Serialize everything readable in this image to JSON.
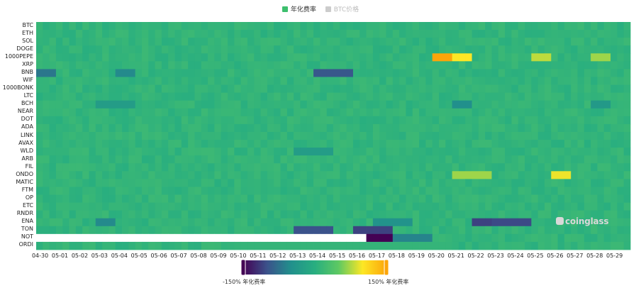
{
  "chart_data": {
    "type": "heatmap",
    "legend": [
      {
        "name": "年化费率",
        "color": "#3dbf6e",
        "active": true
      },
      {
        "name": "BTC价格",
        "color": "#cccccc",
        "active": false
      }
    ],
    "y_categories": [
      "BTC",
      "ETH",
      "SOL",
      "DOGE",
      "1000PEPE",
      "XRP",
      "BNB",
      "WIF",
      "1000BONK",
      "LTC",
      "BCH",
      "NEAR",
      "DOT",
      "ADA",
      "LINK",
      "AVAX",
      "WLD",
      "ARB",
      "FIL",
      "ONDO",
      "MATIC",
      "FTM",
      "OP",
      "ETC",
      "RNDR",
      "ENA",
      "TON",
      "NOT",
      "ORDI"
    ],
    "x_tick_labels": [
      "04-30",
      "05-01",
      "05-02",
      "05-03",
      "05-04",
      "05-05",
      "05-06",
      "05-07",
      "05-08",
      "05-09",
      "05-10",
      "05-11",
      "05-12",
      "05-13",
      "05-14",
      "05-15",
      "05-16",
      "05-17",
      "05-18",
      "05-19",
      "05-20",
      "05-21",
      "05-22",
      "05-23",
      "05-24",
      "05-25",
      "05-26",
      "05-27",
      "05-28",
      "05-29"
    ],
    "value_range": [
      -150,
      150
    ],
    "value_unit": "%",
    "color_scale": [
      "#440154",
      "#3b528b",
      "#21908c",
      "#28ae80",
      "#5ec962",
      "#fde725",
      "#fca50a"
    ],
    "base_value": 10,
    "missing": [
      {
        "category": "NOT",
        "from": "04-30",
        "to": "05-16"
      }
    ],
    "highlights": [
      {
        "category": "TON",
        "from": "05-13",
        "to": "05-13",
        "value": -90
      },
      {
        "category": "TON",
        "from": "05-13",
        "to": "05-14",
        "value": -100
      },
      {
        "category": "TON",
        "from": "05-16",
        "to": "05-17",
        "value": -110
      },
      {
        "category": "NOT",
        "from": "05-16",
        "to": "05-17",
        "value": -150
      },
      {
        "category": "NOT",
        "from": "05-18",
        "to": "05-19",
        "value": -60
      },
      {
        "category": "BNB",
        "from": "05-14",
        "to": "05-15",
        "value": -95
      },
      {
        "category": "BNB",
        "from": "05-04",
        "to": "05-04",
        "value": -55
      },
      {
        "category": "BNB",
        "from": "04-30",
        "to": "04-30",
        "value": -70
      },
      {
        "category": "ENA",
        "from": "05-22",
        "to": "05-22",
        "value": -110
      },
      {
        "category": "ENA",
        "from": "05-23",
        "to": "05-24",
        "value": -105
      },
      {
        "category": "ENA",
        "from": "05-03",
        "to": "05-03",
        "value": -55
      },
      {
        "category": "ENA",
        "from": "05-17",
        "to": "05-18",
        "value": -45
      },
      {
        "category": "BCH",
        "from": "05-03",
        "to": "05-04",
        "value": -30
      },
      {
        "category": "BCH",
        "from": "05-21",
        "to": "05-21",
        "value": -50
      },
      {
        "category": "BCH",
        "from": "05-28",
        "to": "05-28",
        "value": -35
      },
      {
        "category": "1000PEPE",
        "from": "05-20",
        "to": "05-20",
        "value": 150
      },
      {
        "category": "1000PEPE",
        "from": "05-21",
        "to": "05-21",
        "value": 100
      },
      {
        "category": "1000PEPE",
        "from": "05-25",
        "to": "05-25",
        "value": 80
      },
      {
        "category": "1000PEPE",
        "from": "05-28",
        "to": "05-28",
        "value": 70
      },
      {
        "category": "ONDO",
        "from": "05-26",
        "to": "05-26",
        "value": 95
      },
      {
        "category": "ONDO",
        "from": "05-21",
        "to": "05-22",
        "value": 70
      },
      {
        "category": "WLD",
        "from": "05-13",
        "to": "05-14",
        "value": -30
      },
      {
        "category": "ORDI",
        "from": "05-10",
        "to": "05-20",
        "value": 12
      }
    ],
    "scale_min_label": "-150% 年化费率",
    "scale_max_label": "150% 年化费率",
    "watermark": "coinglass"
  }
}
